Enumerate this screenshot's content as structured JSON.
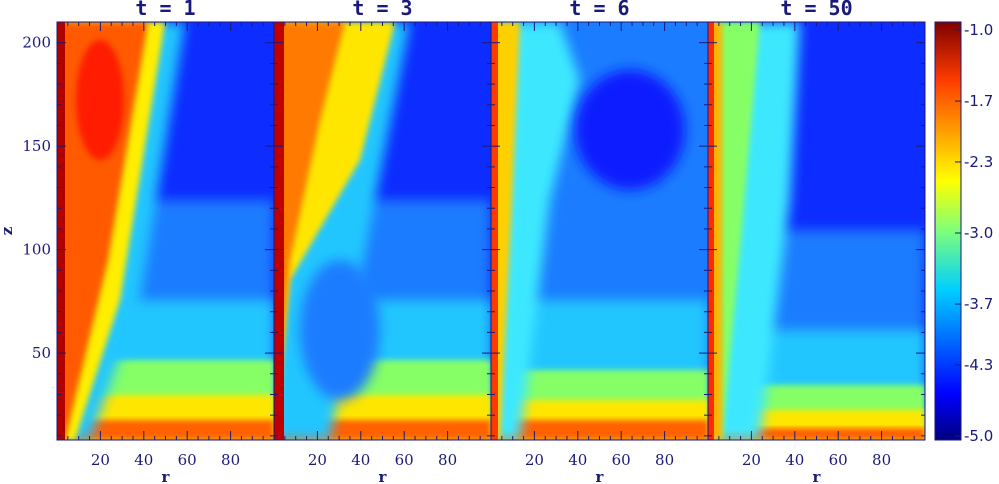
{
  "chart_data": {
    "type": "heatmap",
    "xlabel": "r",
    "ylabel": "z",
    "xlim": [
      0,
      100
    ],
    "ylim": [
      8,
      210
    ],
    "x_ticks": [
      20,
      40,
      60,
      80
    ],
    "y_ticks": [
      50,
      100,
      150,
      200
    ],
    "colorbar": {
      "range": [
        -5.0,
        -1.0
      ],
      "ticks": [
        "-1.0",
        "-1.7",
        "-2.3",
        "-3.0",
        "-3.7",
        "-4.3",
        "-5.0"
      ],
      "colormap": "jet"
    },
    "panels": [
      {
        "title": "t = 1"
      },
      {
        "title": "t = 3"
      },
      {
        "title": "t = 6"
      },
      {
        "title": "t = 50"
      }
    ]
  }
}
